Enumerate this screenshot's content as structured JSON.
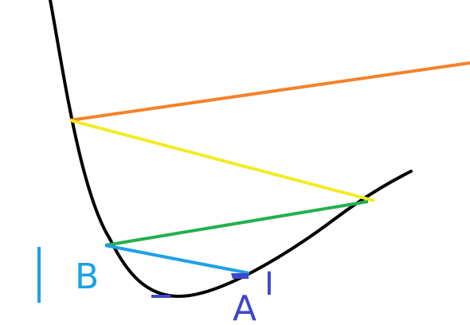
{
  "labels": {
    "point_a": "A",
    "point_b": "B",
    "mark_right": "I"
  },
  "colors": {
    "curve": "#000000",
    "orange_segment": "#f5822a",
    "yellow_segment": "#f2ec24",
    "green_segment": "#23b14d",
    "cyan_segment": "#1ea1e3",
    "blue_marks": "#3f48cc",
    "cyan_marks": "#1ea1e3",
    "background": "#ffffff"
  }
}
